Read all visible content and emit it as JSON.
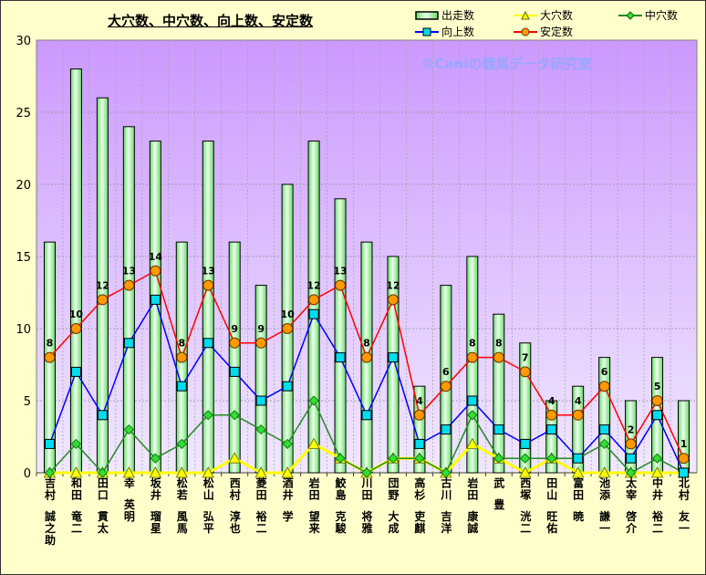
{
  "chart_data": {
    "type": "bar+line",
    "title": "大穴数、中穴数、向上数、安定数",
    "watermark": "©Caniの競馬データ研究室",
    "categories": [
      "吉村 誠之助",
      "和田 竜二",
      "田口 貫太",
      "幸 英明",
      "坂井 瑠星",
      "松若 風馬",
      "松山 弘平",
      "西村 淳也",
      "菱田 裕二",
      "酒井 学",
      "岩田 望来",
      "鮫島 克駿",
      "川田 将雅",
      "団野 大成",
      "高杉 吏麒",
      "古川 吉洋",
      "岩田 康誠",
      "武 豊",
      "西塚 洸二",
      "田山 旺佑",
      "富田 暁",
      "池添 謙一",
      "太宰 啓介",
      "中井 裕二",
      "北村 友一"
    ],
    "ylim": [
      0,
      30
    ],
    "yticks": [
      0,
      5,
      10,
      15,
      20,
      25,
      30
    ],
    "grid": true,
    "legend_position": "top-right",
    "series": [
      {
        "name": "出走数",
        "type": "bar",
        "color": "#99FF99",
        "values": [
          16,
          28,
          26,
          24,
          23,
          16,
          23,
          16,
          13,
          20,
          23,
          19,
          16,
          15,
          6,
          13,
          15,
          11,
          9,
          5,
          6,
          8,
          5,
          8,
          5
        ]
      },
      {
        "name": "大穴数",
        "type": "line",
        "marker": "triangle",
        "color": "#FFFF00",
        "values": [
          0,
          0,
          0,
          0,
          0,
          0,
          0,
          1,
          0,
          0,
          2,
          1,
          0,
          1,
          1,
          0,
          2,
          1,
          0,
          1,
          0,
          0,
          0,
          0,
          0
        ]
      },
      {
        "name": "中穴数",
        "type": "line",
        "marker": "diamond",
        "color": "#228B22",
        "values": [
          0,
          2,
          0,
          3,
          1,
          2,
          4,
          4,
          3,
          2,
          5,
          1,
          0,
          1,
          1,
          0,
          4,
          1,
          1,
          1,
          1,
          2,
          0,
          1,
          0
        ]
      },
      {
        "name": "向上数",
        "type": "line",
        "marker": "square",
        "color": "#0000FF",
        "values": [
          2,
          7,
          4,
          9,
          12,
          6,
          9,
          7,
          5,
          6,
          11,
          8,
          4,
          8,
          2,
          3,
          5,
          3,
          2,
          3,
          1,
          3,
          1,
          4,
          0
        ]
      },
      {
        "name": "安定数",
        "type": "line",
        "marker": "circle",
        "color": "#FF0000",
        "data_labels": true,
        "values": [
          8,
          10,
          12,
          13,
          14,
          8,
          13,
          9,
          9,
          10,
          12,
          13,
          8,
          12,
          4,
          6,
          8,
          8,
          7,
          4,
          4,
          6,
          2,
          5,
          1
        ]
      }
    ]
  }
}
